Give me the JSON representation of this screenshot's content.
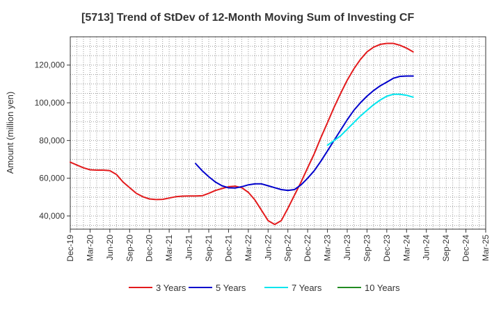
{
  "chart_data": {
    "type": "line",
    "title": "[5713]  Trend of StDev of 12-Month Moving Sum of Investing CF",
    "xlabel": "",
    "ylabel": "Amount (million yen)",
    "ylim": [
      33000,
      135000
    ],
    "yticks": [
      40000,
      60000,
      80000,
      100000,
      120000
    ],
    "ytick_labels": [
      "40,000",
      "60,000",
      "80,000",
      "100,000",
      "120,000"
    ],
    "x_tick_labels": [
      "Dec-19",
      "Mar-20",
      "Jun-20",
      "Sep-20",
      "Dec-20",
      "Mar-21",
      "Jun-21",
      "Sep-21",
      "Dec-21",
      "Mar-22",
      "Jun-22",
      "Sep-22",
      "Dec-22",
      "Mar-23",
      "Jun-23",
      "Sep-23",
      "Dec-23",
      "Mar-24",
      "Jun-24",
      "Sep-24",
      "Dec-24",
      "Mar-25"
    ],
    "grid": true,
    "legend_position": "bottom",
    "series": [
      {
        "name": "3 Years",
        "color": "#e31a1c",
        "values": [
          68500,
          67000,
          65500,
          64500,
          64300,
          64300,
          64000,
          62000,
          58000,
          55000,
          52000,
          50200,
          49000,
          48700,
          48800,
          49500,
          50200,
          50500,
          50600,
          50600,
          50700,
          52000,
          53500,
          54500,
          55500,
          55800,
          55000,
          52500,
          48500,
          43000,
          37500,
          35500,
          37500,
          44000,
          51000,
          58000,
          65500,
          73000,
          81500,
          89500,
          97500,
          105000,
          112000,
          118000,
          123000,
          127000,
          129500,
          131000,
          131500,
          131500,
          130500,
          129000,
          127000
        ]
      },
      {
        "name": "5 Years",
        "color": "#0000cc",
        "values": [
          null,
          null,
          null,
          null,
          null,
          null,
          null,
          null,
          null,
          null,
          null,
          null,
          null,
          null,
          null,
          null,
          null,
          null,
          null,
          67800,
          64000,
          60800,
          58000,
          56000,
          54900,
          54800,
          55500,
          56500,
          57000,
          57000,
          56000,
          55000,
          54000,
          53500,
          54000,
          56500,
          60000,
          64000,
          69000,
          74500,
          80000,
          85500,
          91000,
          96000,
          100000,
          103500,
          106500,
          109000,
          111000,
          113000,
          114000,
          114200,
          114200
        ]
      },
      {
        "name": "7 Years",
        "color": "#00e5ee",
        "values": [
          null,
          null,
          null,
          null,
          null,
          null,
          null,
          null,
          null,
          null,
          null,
          null,
          null,
          null,
          null,
          null,
          null,
          null,
          null,
          null,
          null,
          null,
          null,
          null,
          null,
          null,
          null,
          null,
          null,
          null,
          null,
          null,
          null,
          null,
          null,
          null,
          null,
          null,
          null,
          77500,
          80000,
          82500,
          86000,
          89500,
          93000,
          96000,
          99000,
          101500,
          103500,
          104500,
          104500,
          104000,
          103000
        ]
      },
      {
        "name": "10 Years",
        "color": "#228b22",
        "values": []
      }
    ]
  }
}
